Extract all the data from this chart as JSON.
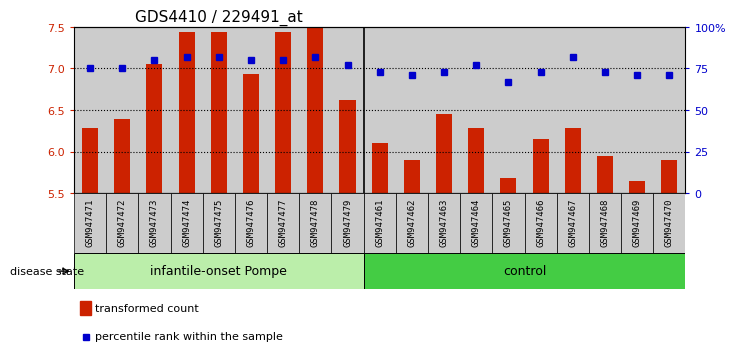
{
  "title": "GDS4410 / 229491_at",
  "samples": [
    "GSM947471",
    "GSM947472",
    "GSM947473",
    "GSM947474",
    "GSM947475",
    "GSM947476",
    "GSM947477",
    "GSM947478",
    "GSM947479",
    "GSM947461",
    "GSM947462",
    "GSM947463",
    "GSM947464",
    "GSM947465",
    "GSM947466",
    "GSM947467",
    "GSM947468",
    "GSM947469",
    "GSM947470"
  ],
  "red_values": [
    6.28,
    6.39,
    7.05,
    7.44,
    7.44,
    6.93,
    7.44,
    7.5,
    6.62,
    6.1,
    5.9,
    6.45,
    6.28,
    5.68,
    6.15,
    6.28,
    5.95,
    5.65,
    5.9
  ],
  "blue_pct": [
    75,
    75,
    80,
    82,
    82,
    80,
    80,
    82,
    77,
    73,
    71,
    73,
    77,
    67,
    73,
    82,
    73,
    71,
    71
  ],
  "group1_count": 9,
  "group2_count": 10,
  "group1_label": "infantile-onset Pompe",
  "group2_label": "control",
  "row_label": "disease state",
  "legend_red": "transformed count",
  "legend_blue": "percentile rank within the sample",
  "ylim_left": [
    5.5,
    7.5
  ],
  "ylim_right": [
    0,
    100
  ],
  "yticks_left": [
    5.5,
    6.0,
    6.5,
    7.0,
    7.5
  ],
  "yticks_right": [
    0,
    25,
    50,
    75,
    100
  ],
  "ytick_labels_right": [
    "0",
    "25",
    "50",
    "75",
    "100%"
  ],
  "red_color": "#cc2200",
  "blue_color": "#0000cc",
  "group1_bg": "#bbeeaa",
  "group2_bg": "#44cc44",
  "bar_bg": "#cccccc",
  "white_bg": "#ffffff",
  "title_fontsize": 11,
  "axis_fontsize": 8,
  "label_fontsize": 8,
  "tick_fontsize": 6.5,
  "group_label_fontsize": 9
}
